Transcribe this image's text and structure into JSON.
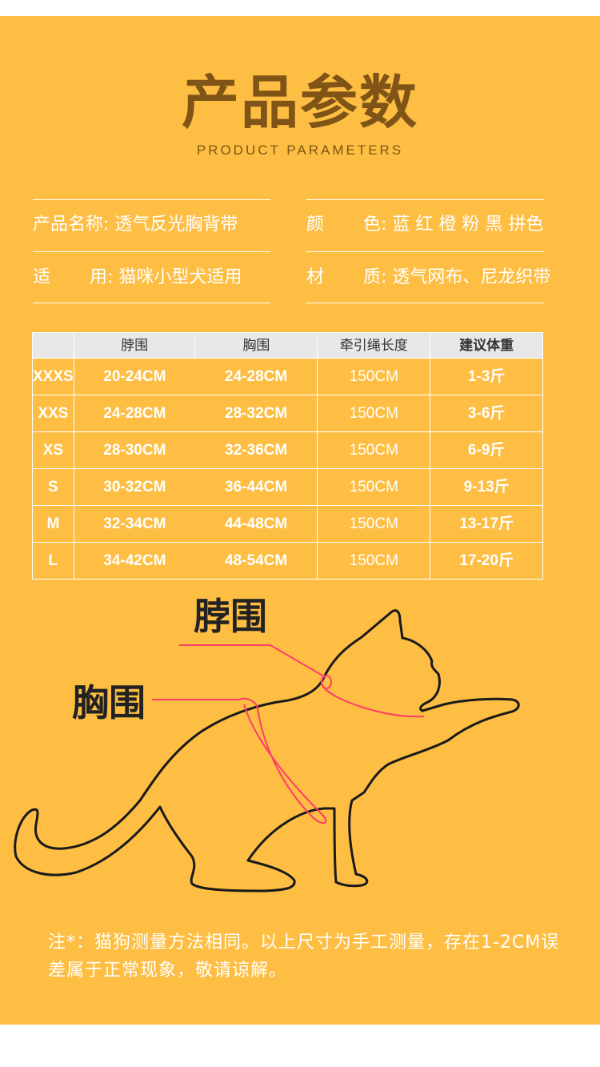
{
  "header": {
    "title": "产品参数",
    "subtitle": "PRODUCT PARAMETERS"
  },
  "specs": [
    {
      "label": "产品名称:",
      "value": "透气反光胸背带"
    },
    {
      "label": "颜       色:",
      "value": "蓝 红 橙 粉 黑 拼色"
    },
    {
      "label": "适       用:",
      "value": "猫咪小型犬适用"
    },
    {
      "label": "材       质:",
      "value": "透气网布、尼龙织带"
    }
  ],
  "table": {
    "headers": [
      "",
      "脖围",
      "胸围",
      "牵引绳长度",
      "建议体重"
    ],
    "rows": [
      [
        "XXXS",
        "20-24CM",
        "24-28CM",
        "150CM",
        "1-3斤"
      ],
      [
        "XXS",
        "24-28CM",
        "28-32CM",
        "150CM",
        "3-6斤"
      ],
      [
        "XS",
        "28-30CM",
        "32-36CM",
        "150CM",
        "6-9斤"
      ],
      [
        "S",
        "30-32CM",
        "36-44CM",
        "150CM",
        "9-13斤"
      ],
      [
        "M",
        "32-34CM",
        "44-48CM",
        "150CM",
        "13-17斤"
      ],
      [
        "L",
        "34-42CM",
        "48-54CM",
        "150CM",
        "17-20斤"
      ]
    ]
  },
  "diagram": {
    "neck_label": "脖围",
    "chest_label": "胸围",
    "line_color": "#ff3b6b"
  },
  "note": "注*：猫狗测量方法相同。以上尺寸为手工测量，存在1-2CM误差属于正常现象，敬请谅解。",
  "colors": {
    "background": "#FDBE43",
    "title": "#7f5416"
  }
}
